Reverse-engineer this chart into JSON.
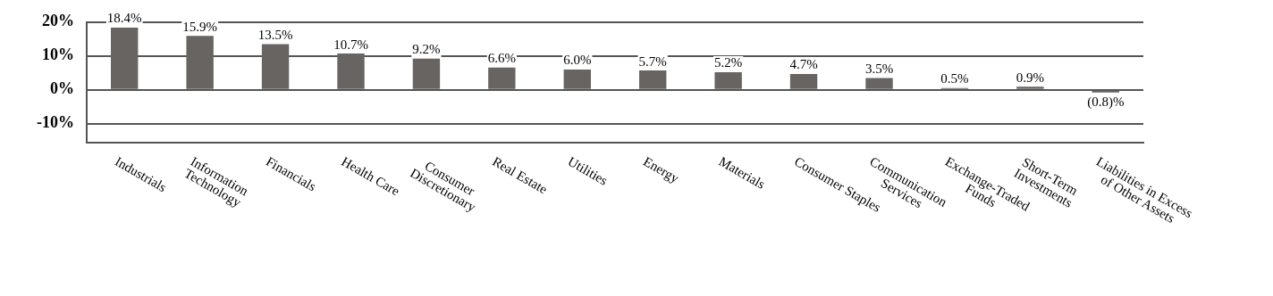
{
  "chart_data": {
    "type": "bar",
    "categories": [
      "Industrials",
      "Information Technology",
      "Financials",
      "Health Care",
      "Consumer Discretionary",
      "Real Estate",
      "Utilities",
      "Energy",
      "Materials",
      "Consumer Staples",
      "Communication Services",
      "Exchange-Traded Funds",
      "Short-Term Investments",
      "Liabilities in Excess of Other Assets"
    ],
    "values": [
      18.4,
      15.9,
      13.5,
      10.7,
      9.2,
      6.6,
      6.0,
      5.7,
      5.2,
      4.7,
      3.5,
      0.5,
      0.9,
      -0.8
    ],
    "value_labels": [
      "18.4%",
      "15.9%",
      "13.5%",
      "10.7%",
      "9.2%",
      "6.6%",
      "6.0%",
      "5.7%",
      "5.2%",
      "4.7%",
      "3.5%",
      "0.5%",
      "0.9%",
      "(0.8)%"
    ],
    "color": "#686462",
    "ylim": [
      -15.6,
      20
    ],
    "yticks": [
      {
        "value": -10,
        "label": "-10%"
      },
      {
        "value": 0,
        "label": "0%"
      },
      {
        "value": 10,
        "label": "10%"
      },
      {
        "value": 20,
        "label": "20%"
      }
    ],
    "grid": "y",
    "legend": false
  }
}
